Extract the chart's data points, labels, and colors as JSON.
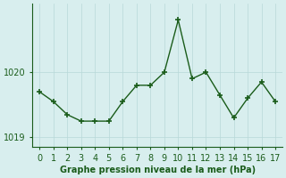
{
  "x": [
    0,
    1,
    2,
    3,
    4,
    5,
    6,
    7,
    8,
    9,
    10,
    11,
    12,
    13,
    14,
    15,
    16,
    17
  ],
  "y": [
    1019.7,
    1019.55,
    1019.35,
    1019.25,
    1019.25,
    1019.25,
    1019.55,
    1019.8,
    1019.8,
    1020.0,
    1020.8,
    1019.9,
    1020.0,
    1019.65,
    1019.3,
    1019.6,
    1019.85,
    1019.55
  ],
  "line_color": "#1a5c1a",
  "marker_color": "#1a5c1a",
  "bg_color": "#d8eeee",
  "grid_color": "#b8d8d8",
  "xlabel": "Graphe pression niveau de la mer (hPa)",
  "xlabel_color": "#1a5c1a",
  "tick_color": "#1a5c1a",
  "ylim": [
    1018.85,
    1021.05
  ],
  "xlim": [
    -0.5,
    17.5
  ],
  "yticks": [
    1019,
    1020
  ],
  "xticks": [
    0,
    1,
    2,
    3,
    4,
    5,
    6,
    7,
    8,
    9,
    10,
    11,
    12,
    13,
    14,
    15,
    16,
    17
  ]
}
